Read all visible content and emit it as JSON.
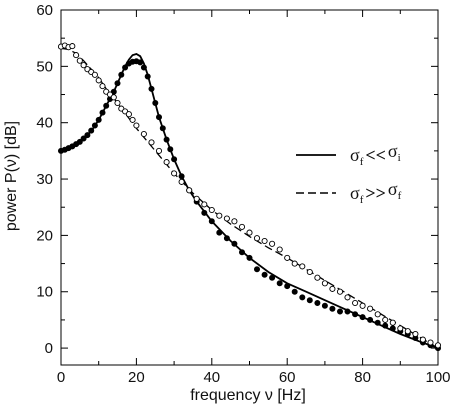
{
  "chart_data": {
    "type": "scatter",
    "title": "",
    "xlabel": "frequency ν [Hz]",
    "ylabel": "power P(ν) [dB]",
    "xlim": [
      0,
      100
    ],
    "ylim": [
      -3,
      60
    ],
    "x_ticks": [
      "0",
      "20",
      "40",
      "60",
      "80",
      "100"
    ],
    "y_ticks": [
      "0",
      "10",
      "20",
      "30",
      "40",
      "50",
      "60"
    ],
    "grid": false,
    "legend_position": "right",
    "legend": [
      {
        "style": "solid",
        "text": "σ_f << σ_i",
        "main1": "σ",
        "sub1": "f",
        "op": "<<",
        "main2": "σ",
        "sub2": "i"
      },
      {
        "style": "dashed",
        "text": "σ_f >> σ_f",
        "main1": "σ",
        "sub1": "f",
        "op": ">>",
        "main2": "σ",
        "sub2": "f"
      }
    ],
    "series": [
      {
        "name": "σ_f << σ_i",
        "kind": "line",
        "line_style": "solid",
        "x": [
          0,
          4,
          8,
          10,
          12,
          14,
          16,
          17,
          18,
          19,
          20,
          21,
          22,
          23,
          24,
          26,
          28,
          30,
          32,
          34,
          36,
          40,
          45,
          50,
          55,
          60,
          65,
          70,
          75,
          80,
          85,
          90,
          95,
          100
        ],
        "y": [
          35,
          36,
          38.5,
          40.5,
          43,
          45.5,
          48.5,
          50,
          51.2,
          52,
          52.2,
          51.8,
          50.5,
          48.5,
          46,
          41,
          37,
          33.5,
          30.5,
          28,
          26,
          22.5,
          19,
          16,
          13.5,
          11.5,
          10,
          8.5,
          7,
          5.5,
          4,
          2.5,
          1.2,
          0
        ]
      },
      {
        "name": "σ_f >> σ_f",
        "kind": "line",
        "line_style": "dashed",
        "x": [
          0,
          2,
          4,
          6,
          8,
          10,
          12,
          15,
          20,
          25,
          30,
          35,
          40,
          45,
          50,
          55,
          60,
          65,
          70,
          75,
          80,
          85,
          90,
          95,
          100
        ],
        "y": [
          53.2,
          53,
          52.3,
          51,
          49.5,
          48,
          46,
          43.5,
          39,
          35,
          31,
          27.5,
          24.5,
          22,
          19.8,
          17.8,
          16,
          14,
          12,
          10,
          8,
          6,
          4,
          2,
          0
        ]
      },
      {
        "name": "filled points",
        "kind": "scatter",
        "marker": "filled-circle",
        "x": [
          0,
          1,
          2,
          3,
          4,
          5,
          6,
          7,
          8,
          9,
          10,
          11,
          12,
          13,
          14,
          15,
          16,
          17,
          18,
          19,
          20,
          21,
          22,
          23,
          24,
          25,
          26,
          27,
          28,
          29,
          30,
          32,
          34,
          36,
          38,
          40,
          42,
          44,
          46,
          48,
          50,
          52,
          54,
          56,
          58,
          60,
          62,
          64,
          66,
          68,
          70,
          72,
          74,
          76,
          78,
          80,
          82,
          84,
          86,
          88,
          90,
          92,
          94,
          96,
          98,
          100
        ],
        "y": [
          35,
          35.2,
          35.5,
          35.8,
          36.2,
          36.6,
          37.2,
          37.8,
          38.6,
          39.5,
          40.5,
          41.8,
          43,
          44.2,
          45.5,
          47,
          48.5,
          49.8,
          50.5,
          50.8,
          50.9,
          50.7,
          49.8,
          48.2,
          46,
          43.5,
          41,
          39,
          37,
          35.3,
          33.5,
          30.5,
          28,
          26,
          24,
          22.5,
          20.5,
          19.5,
          18.5,
          17,
          16,
          14,
          13,
          12.5,
          11.5,
          11,
          10,
          9,
          8.5,
          8,
          7.5,
          7,
          6.5,
          6.5,
          6,
          5.5,
          5,
          4.5,
          4,
          3.5,
          3,
          2.5,
          1.8,
          1,
          0.5,
          0
        ]
      },
      {
        "name": "open points",
        "kind": "scatter",
        "marker": "open-circle",
        "x": [
          0,
          1,
          2,
          3,
          4,
          5,
          6,
          7,
          8,
          9,
          10,
          11,
          12,
          13,
          14,
          15,
          16,
          17,
          18,
          19,
          20,
          22,
          24,
          26,
          28,
          30,
          32,
          34,
          36,
          38,
          40,
          42,
          44,
          46,
          48,
          50,
          52,
          54,
          56,
          58,
          60,
          62,
          64,
          66,
          68,
          70,
          72,
          74,
          76,
          78,
          80,
          82,
          84,
          86,
          88,
          90,
          92,
          94,
          96,
          98,
          100
        ],
        "y": [
          53.5,
          53.7,
          53.4,
          53.6,
          52,
          51,
          50.2,
          49.5,
          49,
          48.5,
          47.5,
          46.5,
          45.5,
          45,
          44.5,
          43.5,
          42.5,
          42,
          41.5,
          40.5,
          39.5,
          38,
          36.5,
          35,
          33,
          31,
          29.5,
          28,
          26.5,
          25.5,
          24.5,
          23.5,
          23,
          22.5,
          21.5,
          20.5,
          19.5,
          19,
          18.5,
          17.5,
          16,
          15,
          14.5,
          13.5,
          12.5,
          11.5,
          10.5,
          10,
          9,
          8,
          7.5,
          7,
          6,
          5,
          4.5,
          3.5,
          3,
          2.5,
          1.5,
          1,
          0.5
        ]
      }
    ]
  }
}
